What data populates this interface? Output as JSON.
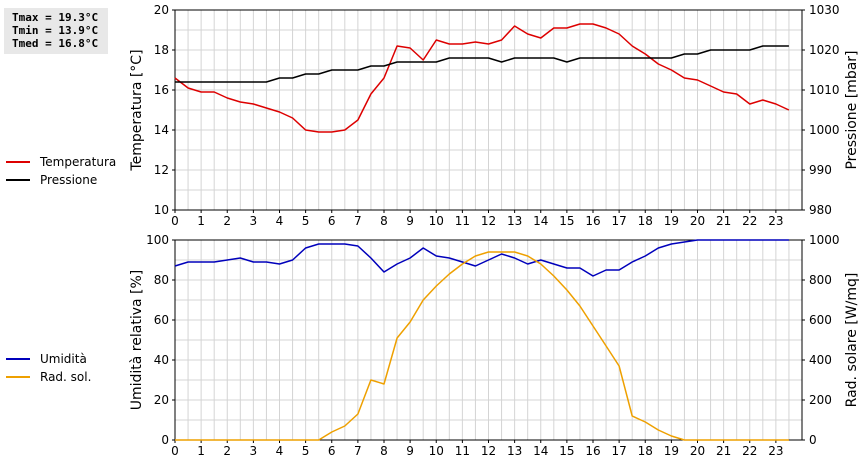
{
  "stats": {
    "tmax": "Tmax = 19.3°C",
    "tmin": "Tmin = 13.9°C",
    "tmed": "Tmed = 16.8°C"
  },
  "chart_data": [
    {
      "type": "line",
      "title": "",
      "xlabel": "",
      "ylabel_left": "Temperatura [°C]",
      "ylabel_right": "Pressione [mbar]",
      "xlim": [
        0,
        24
      ],
      "ylim_left": [
        10,
        20
      ],
      "ylim_right": [
        980,
        1030
      ],
      "x_ticks": [
        0,
        1,
        2,
        3,
        4,
        5,
        6,
        7,
        8,
        9,
        10,
        11,
        12,
        13,
        14,
        15,
        16,
        17,
        18,
        19,
        20,
        21,
        22,
        23
      ],
      "y_ticks_left": [
        10,
        12,
        14,
        16,
        18,
        20
      ],
      "y_ticks_right": [
        980,
        990,
        1000,
        1010,
        1020,
        1030
      ],
      "grid": true,
      "legend_position": "left",
      "series": [
        {
          "name": "Temperatura",
          "axis": "left",
          "color": "#dd0000",
          "x": [
            0,
            0.5,
            1,
            1.5,
            2,
            2.5,
            3,
            3.5,
            4,
            4.5,
            5,
            5.5,
            6,
            6.5,
            7,
            7.5,
            8,
            8.5,
            9,
            9.5,
            10,
            10.5,
            11,
            11.5,
            12,
            12.5,
            13,
            13.5,
            14,
            14.5,
            15,
            15.5,
            16,
            16.5,
            17,
            17.5,
            18,
            18.5,
            19,
            19.5,
            20,
            20.5,
            21,
            21.5,
            22,
            22.5,
            23,
            23.5
          ],
          "y": [
            16.6,
            16.1,
            15.9,
            15.9,
            15.6,
            15.4,
            15.3,
            15.1,
            14.9,
            14.6,
            14.0,
            13.9,
            13.9,
            14.0,
            14.5,
            15.8,
            16.6,
            18.2,
            18.1,
            17.5,
            18.5,
            18.3,
            18.3,
            18.4,
            18.3,
            18.5,
            19.2,
            18.8,
            18.6,
            19.1,
            19.1,
            19.3,
            19.3,
            19.1,
            18.8,
            18.2,
            17.8,
            17.3,
            17.0,
            16.6,
            16.5,
            16.2,
            15.9,
            15.8,
            15.3,
            15.5,
            15.3,
            15.0
          ]
        },
        {
          "name": "Pressione",
          "axis": "right",
          "color": "#000000",
          "x": [
            0,
            0.5,
            1,
            1.5,
            2,
            2.5,
            3,
            3.5,
            4,
            4.5,
            5,
            5.5,
            6,
            6.5,
            7,
            7.5,
            8,
            8.5,
            9,
            9.5,
            10,
            10.5,
            11,
            11.5,
            12,
            12.5,
            13,
            13.5,
            14,
            14.5,
            15,
            15.5,
            16,
            16.5,
            17,
            17.5,
            18,
            18.5,
            19,
            19.5,
            20,
            20.5,
            21,
            21.5,
            22,
            22.5,
            23,
            23.5
          ],
          "y": [
            1012,
            1012,
            1012,
            1012,
            1012,
            1012,
            1012,
            1012,
            1013,
            1013,
            1014,
            1014,
            1015,
            1015,
            1015,
            1016,
            1016,
            1017,
            1017,
            1017,
            1017,
            1018,
            1018,
            1018,
            1018,
            1017,
            1018,
            1018,
            1018,
            1018,
            1017,
            1018,
            1018,
            1018,
            1018,
            1018,
            1018,
            1018,
            1018,
            1019,
            1019,
            1020,
            1020,
            1020,
            1020,
            1021,
            1021,
            1021
          ]
        }
      ]
    },
    {
      "type": "line",
      "title": "",
      "xlabel": "",
      "ylabel_left": "Umidità relativa [%]",
      "ylabel_right": "Rad. solare [W/mq]",
      "xlim": [
        0,
        24
      ],
      "ylim_left": [
        0,
        100
      ],
      "ylim_right": [
        0,
        1000
      ],
      "x_ticks": [
        0,
        1,
        2,
        3,
        4,
        5,
        6,
        7,
        8,
        9,
        10,
        11,
        12,
        13,
        14,
        15,
        16,
        17,
        18,
        19,
        20,
        21,
        22,
        23
      ],
      "y_ticks_left": [
        0,
        20,
        40,
        60,
        80,
        100
      ],
      "y_ticks_right": [
        0,
        200,
        400,
        600,
        800,
        1000
      ],
      "grid": true,
      "legend_position": "left",
      "series": [
        {
          "name": "Umidità",
          "axis": "left",
          "color": "#0000bb",
          "x": [
            0,
            0.5,
            1,
            1.5,
            2,
            2.5,
            3,
            3.5,
            4,
            4.5,
            5,
            5.5,
            6,
            6.5,
            7,
            7.5,
            8,
            8.5,
            9,
            9.5,
            10,
            10.5,
            11,
            11.5,
            12,
            12.5,
            13,
            13.5,
            14,
            14.5,
            15,
            15.5,
            16,
            16.5,
            17,
            17.5,
            18,
            18.5,
            19,
            19.5,
            20,
            20.5,
            21,
            21.5,
            22,
            22.5,
            23,
            23.5
          ],
          "y": [
            87,
            89,
            89,
            89,
            90,
            91,
            89,
            89,
            88,
            90,
            96,
            98,
            98,
            98,
            97,
            91,
            84,
            88,
            91,
            96,
            92,
            91,
            89,
            87,
            90,
            93,
            91,
            88,
            90,
            88,
            86,
            86,
            82,
            85,
            85,
            89,
            92,
            96,
            98,
            99,
            100,
            100,
            100,
            100,
            100,
            100,
            100,
            100
          ]
        },
        {
          "name": "Rad. sol.",
          "axis": "right",
          "color": "#eea000",
          "x": [
            0,
            0.5,
            1,
            1.5,
            2,
            2.5,
            3,
            3.5,
            4,
            4.5,
            5,
            5.5,
            6,
            6.5,
            7,
            7.5,
            8,
            8.5,
            9,
            9.5,
            10,
            10.5,
            11,
            11.5,
            12,
            12.5,
            13,
            13.5,
            14,
            14.5,
            15,
            15.5,
            16,
            16.5,
            17,
            17.5,
            18,
            18.5,
            19,
            19.5,
            20,
            20.5,
            21,
            21.5,
            22,
            22.5,
            23,
            23.5
          ],
          "y": [
            0,
            0,
            0,
            0,
            0,
            0,
            0,
            0,
            0,
            0,
            0,
            0,
            40,
            70,
            130,
            300,
            280,
            510,
            590,
            700,
            770,
            830,
            880,
            920,
            940,
            940,
            940,
            920,
            880,
            820,
            750,
            670,
            570,
            470,
            370,
            120,
            90,
            50,
            20,
            0,
            0,
            0,
            0,
            0,
            0,
            0,
            0,
            0
          ]
        }
      ]
    }
  ]
}
